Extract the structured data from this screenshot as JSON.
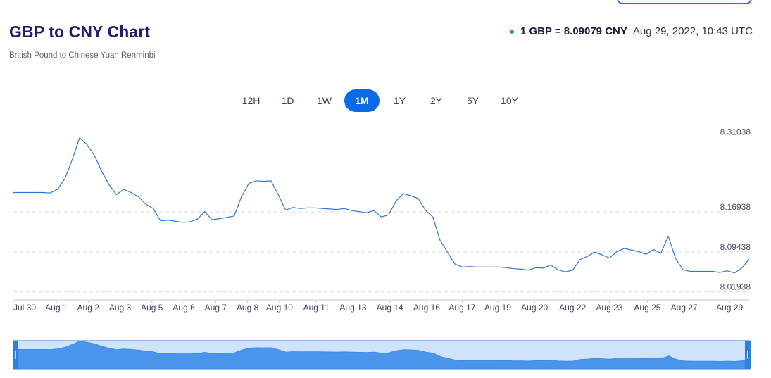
{
  "header": {
    "title": "GBP to CNY Chart",
    "subtitle": "British Pound to Chinese Yuan Renminbi",
    "rate": "1 GBP = 8.09079 CNY",
    "timestamp": "Aug 29, 2022, 10:43 UTC",
    "live_color": "#2bb24c"
  },
  "tabs": [
    {
      "label": "12H",
      "active": false
    },
    {
      "label": "1D",
      "active": false
    },
    {
      "label": "1W",
      "active": false
    },
    {
      "label": "1M",
      "active": true
    },
    {
      "label": "1Y",
      "active": false
    },
    {
      "label": "2Y",
      "active": false
    },
    {
      "label": "5Y",
      "active": false
    },
    {
      "label": "10Y",
      "active": false
    }
  ],
  "chart_data": {
    "type": "line",
    "series": [
      {
        "x": [
          0,
          0.3,
          0.6,
          0.9,
          1.2,
          1.5,
          1.8,
          2.1,
          2.4,
          2.7,
          3.0,
          3.3,
          3.6,
          3.9,
          4.2,
          4.5,
          4.8,
          5.1,
          5.4,
          5.7,
          6.0,
          6.3,
          6.6,
          6.9,
          7.2,
          7.5,
          7.8,
          8.1,
          8.4,
          8.7,
          9.0,
          9.3,
          9.6,
          9.9,
          10.2,
          10.5,
          10.8,
          11.1,
          11.4,
          11.7,
          12.0,
          12.3,
          12.6,
          12.9,
          13.2,
          13.5,
          13.8,
          14.1,
          14.4,
          14.7,
          15.0,
          15.3,
          15.6,
          15.9,
          16.2,
          16.5,
          16.8,
          17.1,
          17.4,
          17.7,
          18.0,
          18.3,
          18.6,
          18.9,
          19.2,
          19.5,
          19.8,
          20.1,
          20.4,
          20.7,
          21.0,
          21.3,
          21.6,
          21.9,
          22.2,
          22.5,
          22.8,
          23.1,
          23.4,
          23.7,
          24.0,
          24.3,
          24.6,
          24.9,
          25.2,
          25.5,
          25.8,
          26.1,
          26.4,
          26.7,
          27.0,
          27.3,
          27.6,
          27.9,
          28.2,
          28.5,
          28.8,
          29.1,
          29.4,
          29.7,
          30.0
        ],
        "y": [
          8.206,
          8.206,
          8.206,
          8.206,
          8.206,
          8.205,
          8.212,
          8.232,
          8.268,
          8.309,
          8.296,
          8.276,
          8.246,
          8.221,
          8.202,
          8.212,
          8.206,
          8.198,
          8.184,
          8.176,
          8.153,
          8.154,
          8.152,
          8.15,
          8.151,
          8.156,
          8.17,
          8.155,
          8.157,
          8.159,
          8.162,
          8.198,
          8.223,
          8.228,
          8.227,
          8.228,
          8.202,
          8.173,
          8.178,
          8.176,
          8.177,
          8.177,
          8.176,
          8.175,
          8.174,
          8.176,
          8.172,
          8.17,
          8.168,
          8.172,
          8.16,
          8.164,
          8.19,
          8.204,
          8.2,
          8.195,
          8.173,
          8.16,
          8.116,
          8.094,
          8.072,
          8.066,
          8.067,
          8.066,
          8.066,
          8.066,
          8.066,
          8.065,
          8.063,
          8.062,
          8.06,
          8.065,
          8.064,
          8.07,
          8.061,
          8.057,
          8.06,
          8.08,
          8.086,
          8.094,
          8.089,
          8.083,
          8.095,
          8.101,
          8.098,
          8.095,
          8.09,
          8.099,
          8.092,
          8.124,
          8.082,
          8.061,
          8.058,
          8.058,
          8.058,
          8.058,
          8.056,
          8.059,
          8.055,
          8.064,
          8.081
        ]
      }
    ],
    "x_ticks": [
      {
        "label": "Jul 30",
        "x": 0
      },
      {
        "label": "Aug 1",
        "x": 1.75
      },
      {
        "label": "Aug 2",
        "x": 3.05
      },
      {
        "label": "Aug 3",
        "x": 4.35
      },
      {
        "label": "Aug 5",
        "x": 5.65
      },
      {
        "label": "Aug 6",
        "x": 6.95
      },
      {
        "label": "Aug 7",
        "x": 8.25
      },
      {
        "label": "Aug 8",
        "x": 9.55
      },
      {
        "label": "Aug 10",
        "x": 10.85
      },
      {
        "label": "Aug 11",
        "x": 12.35
      },
      {
        "label": "Aug 13",
        "x": 13.85
      },
      {
        "label": "Aug 14",
        "x": 15.35
      },
      {
        "label": "Aug 16",
        "x": 16.85
      },
      {
        "label": "Aug 17",
        "x": 18.3
      },
      {
        "label": "Aug 19",
        "x": 19.75
      },
      {
        "label": "Aug 20",
        "x": 21.25
      },
      {
        "label": "Aug 22",
        "x": 22.8
      },
      {
        "label": "Aug 23",
        "x": 24.3
      },
      {
        "label": "Aug 25",
        "x": 25.85
      },
      {
        "label": "Aug 27",
        "x": 27.35
      },
      {
        "label": "Aug 29",
        "x": 29.2
      }
    ],
    "y_ticks": [
      "8.31038",
      "8.16938",
      "8.09438",
      "8.01938"
    ],
    "xlim": [
      0,
      30
    ],
    "ylim": [
      8.015,
      8.315
    ],
    "grid": true,
    "line_color": "#2c77d6",
    "navigator_fill": "#4a94ec",
    "navigator_background": "#cfe4fb",
    "navigator_border": "#2f7fe0"
  }
}
